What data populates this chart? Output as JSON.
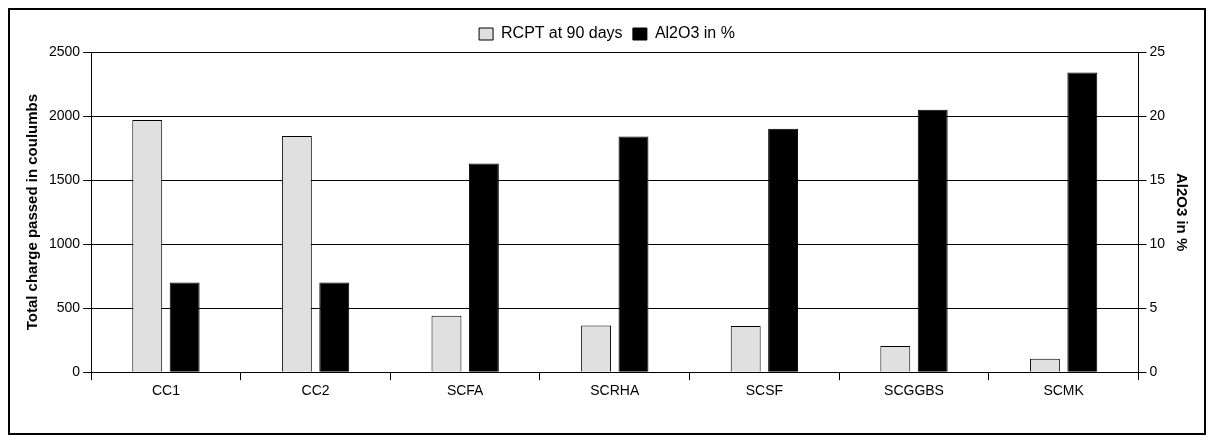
{
  "chart_data": {
    "type": "bar",
    "ylabel": "Total charge passed in coulumbs",
    "y2label": "Al2O3 in %",
    "categories": [
      "CC1",
      "CC2",
      "SCFA",
      "SCRHA",
      "SCSF",
      "SCGGBS",
      "SCMK"
    ],
    "series": [
      {
        "name": "RCPT at 90 days",
        "color": "#e0e0e0",
        "values": [
          1970,
          1845,
          440,
          365,
          360,
          205,
          105
        ]
      },
      {
        "name": "Al2O3 in %",
        "color": "#000000",
        "axis": "y2",
        "values": [
          7.0,
          7.0,
          16.3,
          18.4,
          19.0,
          20.5,
          23.4
        ]
      }
    ],
    "ylim": [
      0,
      2500
    ],
    "yticks": [
      0,
      500,
      1000,
      1500,
      2000,
      2500
    ],
    "y2lim": [
      0,
      25
    ],
    "y2ticks": [
      0,
      5,
      10,
      15,
      20,
      25
    ],
    "grid": "y",
    "legend": "top"
  }
}
